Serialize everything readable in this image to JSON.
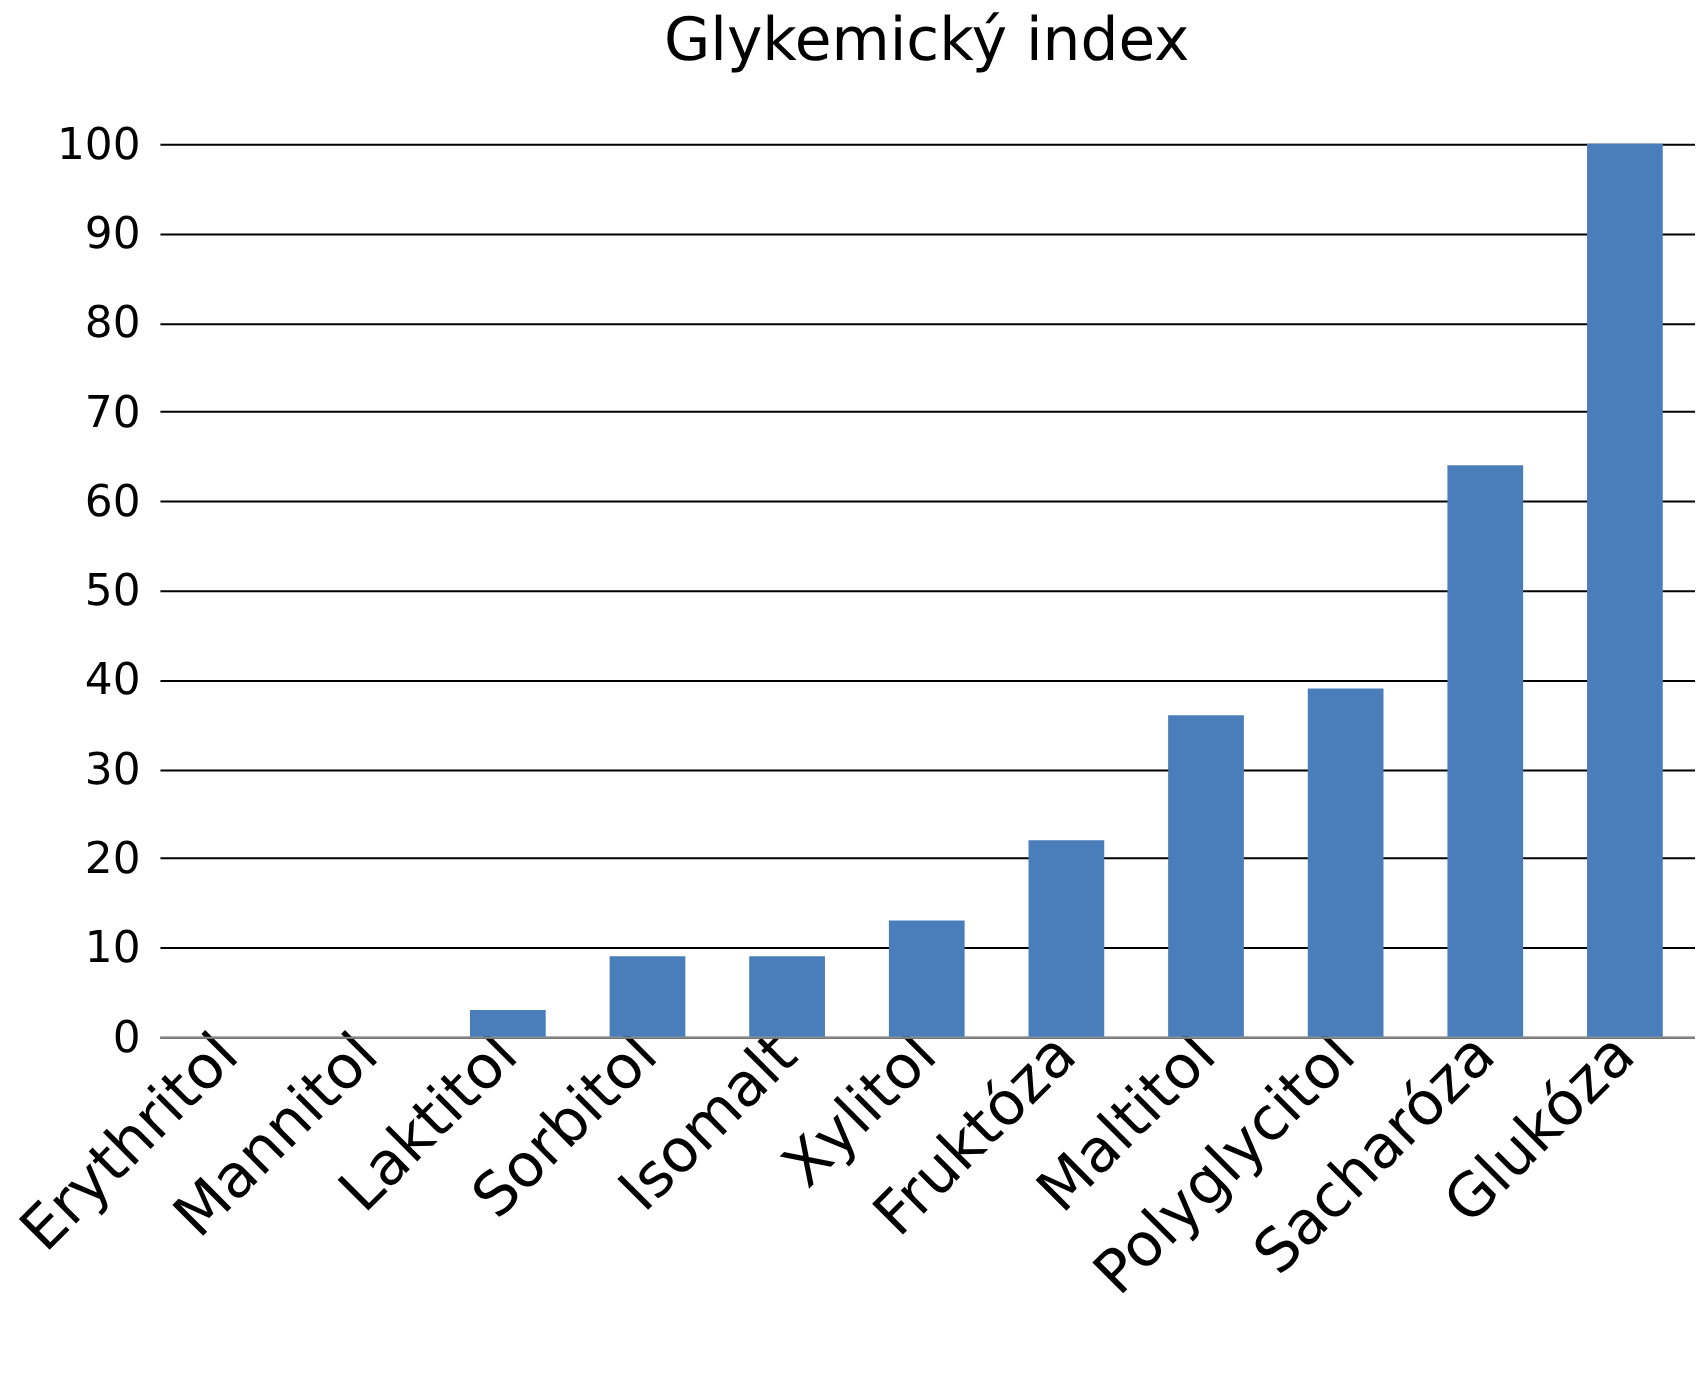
{
  "chart_data": {
    "type": "bar",
    "title": "Glykemický index",
    "categories": [
      "Erythritol",
      "Mannitol",
      "Laktitol",
      "Sorbitol",
      "Isomalt",
      "Xylitol",
      "Fruktóza",
      "Maltitol",
      "Polyglycitol",
      "Sacharóza",
      "Glukóza"
    ],
    "values": [
      0,
      0,
      3,
      9,
      9,
      13,
      22,
      36,
      39,
      64,
      100
    ],
    "color": "#4a7ebb",
    "ylim": [
      0,
      100
    ],
    "yticks": [
      0,
      10,
      20,
      30,
      40,
      50,
      60,
      70,
      80,
      90,
      100
    ],
    "grid": "y"
  }
}
